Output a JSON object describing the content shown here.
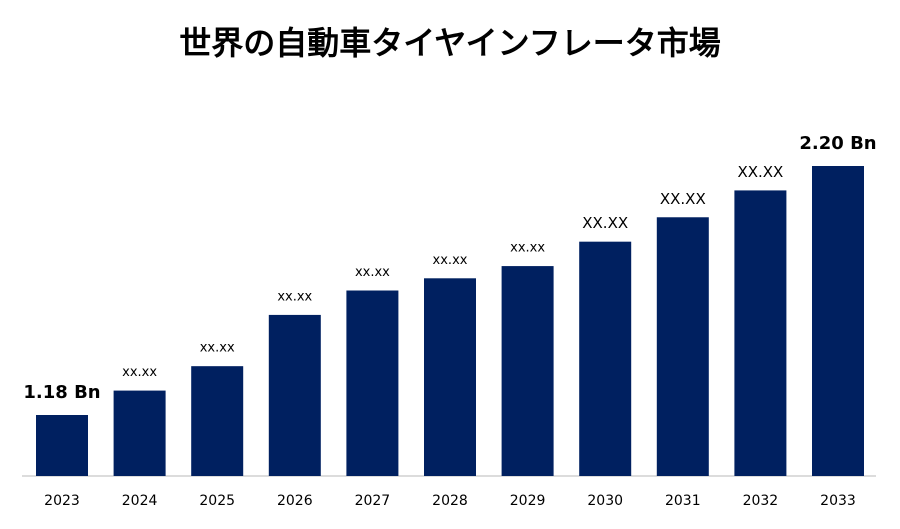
{
  "chart_data": {
    "type": "bar",
    "title": "世界の自動車タイヤインフレータ市場",
    "categories": [
      "2023",
      "2024",
      "2025",
      "2026",
      "2027",
      "2028",
      "2029",
      "2030",
      "2031",
      "2032",
      "2033"
    ],
    "values": [
      1.18,
      1.28,
      1.38,
      1.59,
      1.69,
      1.74,
      1.79,
      1.89,
      1.99,
      2.1,
      2.2
    ],
    "value_labels": [
      "1.18 Bn",
      "xx.xx",
      "xx.xx",
      "xx.xx",
      "xx.xx",
      "xx.xx",
      "xx.xx",
      "XX.XX",
      "XX.XX",
      "XX.XX",
      "2.20 Bn"
    ],
    "color": "#002060"
  }
}
